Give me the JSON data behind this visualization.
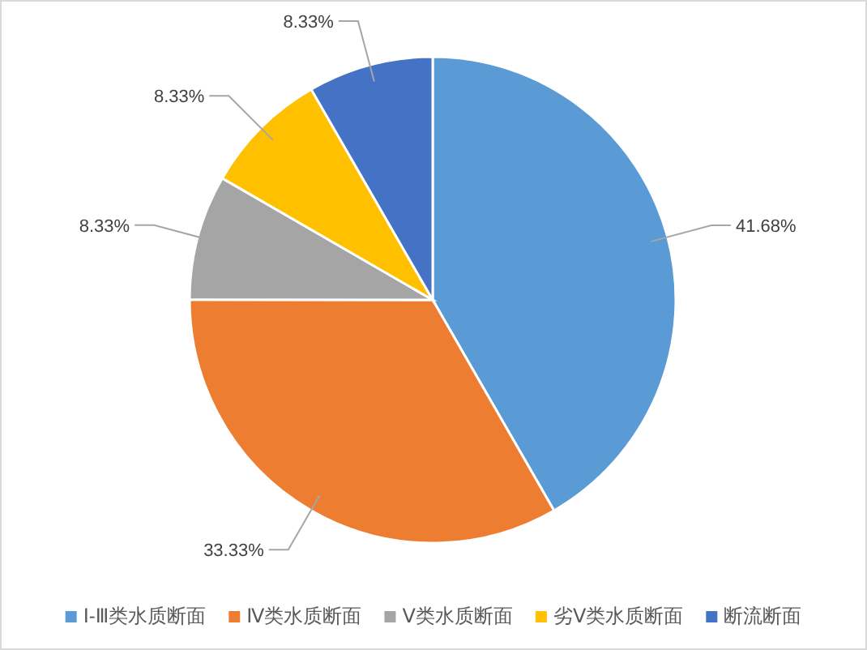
{
  "chart_data": {
    "type": "pie",
    "categories": [
      "Ⅰ-Ⅲ类水质断面",
      "Ⅳ类水质断面",
      "Ⅴ类水质断面",
      "劣Ⅴ类水质断面",
      "断流断面"
    ],
    "values": [
      41.68,
      33.33,
      8.33,
      8.33,
      8.33
    ],
    "colors": [
      "#5b9bd5",
      "#ed7d31",
      "#a5a5a5",
      "#ffc000",
      "#4472c4"
    ],
    "value_labels": [
      "41.68%",
      "33.33%",
      "8.33%",
      "8.33%",
      "8.33%"
    ],
    "legend": "bottom"
  }
}
